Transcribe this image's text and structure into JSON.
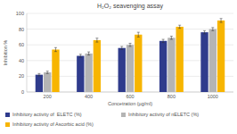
{
  "chart_data": {
    "type": "bar",
    "title": "H₂O₂ seavenging assay",
    "x_label": "Concetration (µg/ml)",
    "y_label": "Inhibition %",
    "categories": [
      "200",
      "400",
      "600",
      "800",
      "1000"
    ],
    "series": [
      {
        "name": "Inhibitory activity of  ELETC (%)",
        "color": "#2f3b8c",
        "values": [
          22,
          46,
          56,
          65,
          76
        ],
        "errors": [
          1.5,
          2,
          2,
          2,
          2
        ]
      },
      {
        "name": "Inhibitory activity of nELETC (%)",
        "color": "#b4b4b4",
        "values": [
          25,
          49,
          60,
          69,
          80
        ],
        "errors": [
          1.5,
          2,
          2,
          2,
          2
        ]
      },
      {
        "name": "Inhibitory activity of Ascorbic acid (%)",
        "color": "#f7b500",
        "values": [
          54,
          66,
          73,
          83,
          91
        ],
        "errors": [
          2.5,
          2.5,
          3,
          2,
          2.5
        ]
      }
    ],
    "ylim": [
      0,
      100
    ],
    "yticks": [
      0,
      20,
      40,
      60,
      80,
      100
    ],
    "grid": true,
    "legend": "bottom"
  }
}
